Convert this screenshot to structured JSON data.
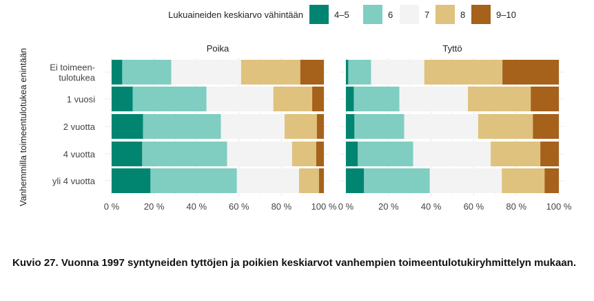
{
  "chart_data": {
    "type": "bar",
    "orientation": "horizontal",
    "stacked": "percent",
    "legend": {
      "title": "Lukuaineiden keskiarvo vähintään",
      "position": "top"
    },
    "ylabel": "Vanhemmilla toimeentulotukea enintään",
    "categories": [
      "Ei toimeen-\ntulotukea",
      "1 vuosi",
      "2 vuotta",
      "4 vuotta",
      "yli 4 vuotta"
    ],
    "xticks": [
      "0 %",
      "20 %",
      "40 %",
      "60 %",
      "80 %",
      "100 %"
    ],
    "xlim": [
      0,
      100
    ],
    "grid": true,
    "series_names": [
      "4–5",
      "6",
      "7",
      "8",
      "9–10"
    ],
    "colors": [
      "#018571",
      "#80cdc1",
      "#f3f3f3",
      "#dfc27d",
      "#a6611a"
    ],
    "panels": [
      {
        "title": "Poika",
        "values": [
          [
            5.0,
            23.1,
            32.9,
            27.9,
            11.1
          ],
          [
            9.9,
            34.8,
            31.5,
            18.3,
            5.5
          ],
          [
            14.8,
            36.7,
            30.0,
            15.2,
            3.3
          ],
          [
            14.4,
            40.0,
            30.6,
            11.4,
            3.6
          ],
          [
            18.3,
            40.7,
            29.3,
            9.4,
            2.3
          ]
        ]
      },
      {
        "title": "Tyttö",
        "values": [
          [
            1.1,
            10.7,
            25.0,
            36.7,
            26.5
          ],
          [
            3.7,
            21.4,
            32.2,
            29.5,
            13.2
          ],
          [
            4.0,
            23.4,
            34.7,
            25.7,
            12.2
          ],
          [
            5.6,
            26.0,
            36.4,
            23.3,
            8.7
          ],
          [
            8.5,
            30.9,
            33.8,
            20.1,
            6.7
          ]
        ]
      }
    ]
  },
  "caption": "Kuvio 27. Vuonna 1997 syntyneiden tyttöjen ja poikien keskiarvot vanhempien toimeentulotuki­ryhmittelyn mukaan."
}
